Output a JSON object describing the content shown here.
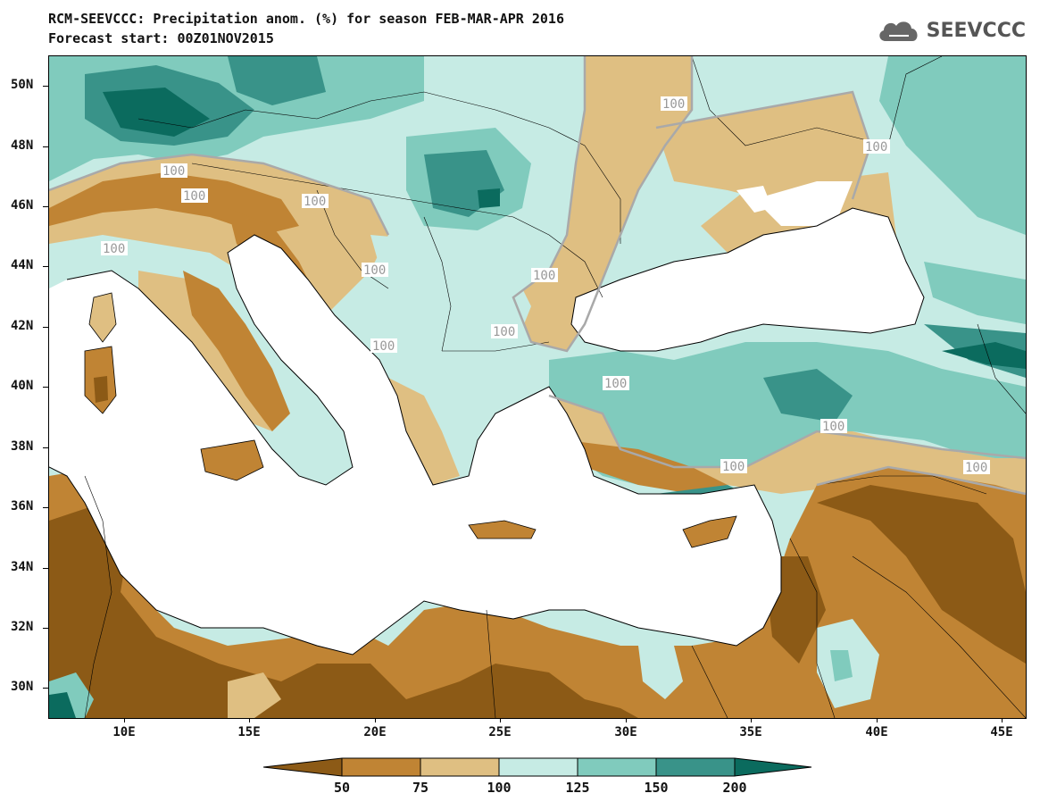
{
  "title": {
    "line1": "RCM-SEEVCCC: Precipitation anom. (%) for season FEB-MAR-APR 2016",
    "line2": "Forecast start: 00Z01NOV2015"
  },
  "logo": {
    "text": "SEEVCCC",
    "icon": "cloud-icon"
  },
  "axes": {
    "lat_labels": [
      "50N",
      "48N",
      "46N",
      "44N",
      "42N",
      "40N",
      "38N",
      "36N",
      "34N",
      "32N",
      "30N"
    ],
    "lon_labels": [
      "10E",
      "15E",
      "20E",
      "25E",
      "30E",
      "35E",
      "40E",
      "45E"
    ]
  },
  "contour_labels": [
    "100",
    "100",
    "100",
    "100",
    "100",
    "100",
    "100",
    "100",
    "100",
    "100",
    "100",
    "100",
    "100",
    "100"
  ],
  "colorbar": {
    "ticks": [
      "50",
      "75",
      "100",
      "125",
      "150",
      "200"
    ],
    "colors": [
      "#8c5a16",
      "#c08434",
      "#dfbf82",
      "#c6ebe4",
      "#80cbbd",
      "#399389",
      "#0b6b5e"
    ]
  },
  "colors": {
    "sea": "#ffffff",
    "brown_dark": "#8c5a16",
    "brown": "#c08434",
    "tan": "#dfbf82",
    "cyan_light": "#c6ebe4",
    "teal_light": "#80cbbd",
    "teal": "#399389",
    "teal_dark": "#0b6b5e",
    "contour_line": "#a9a9a9"
  }
}
